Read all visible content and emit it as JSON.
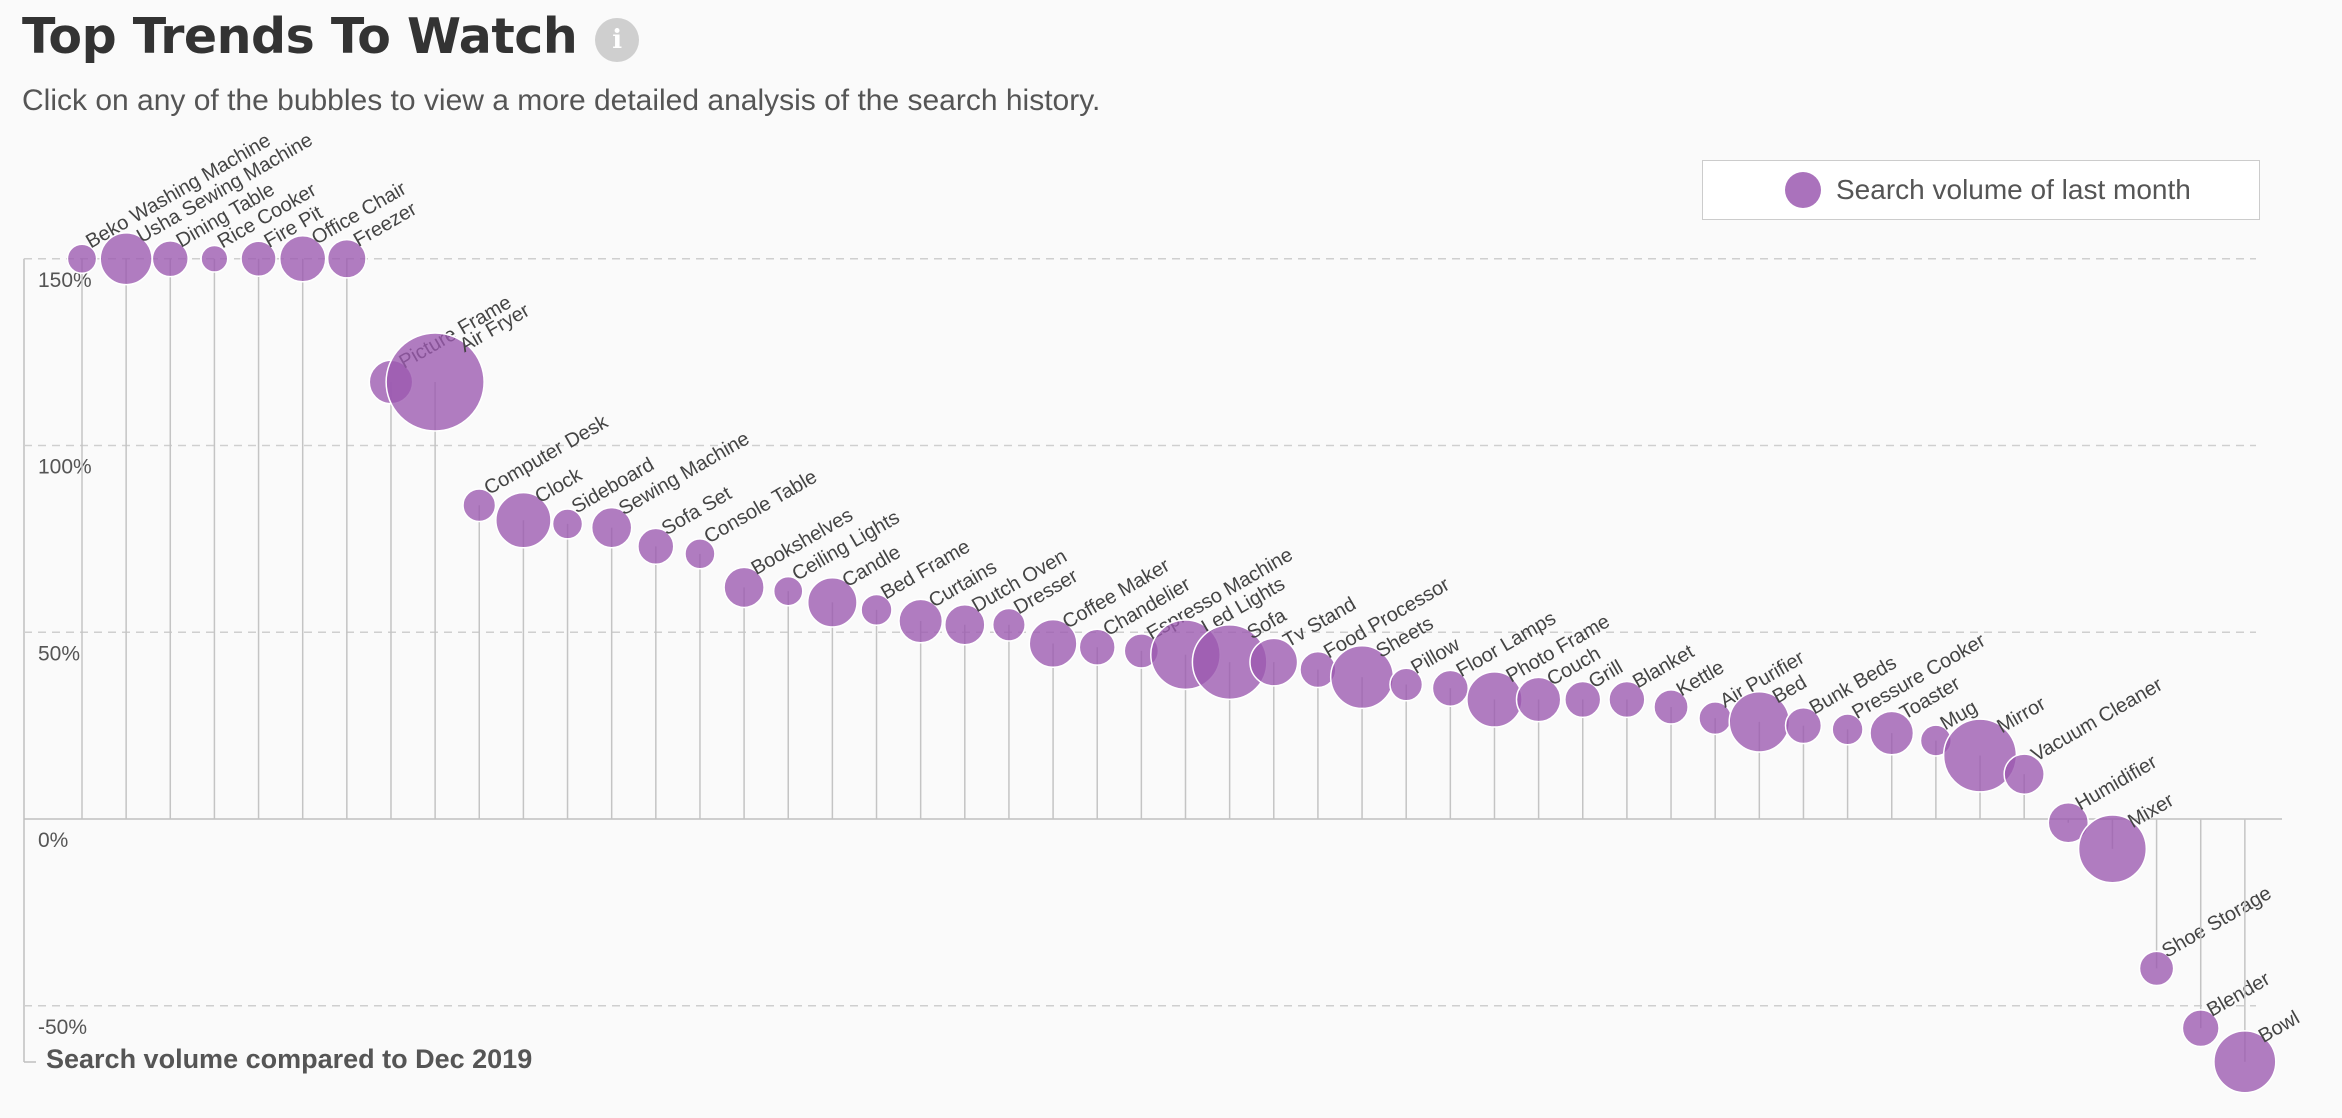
{
  "header": {
    "title": "Top Trends To Watch",
    "subtitle": "Click on any of the bubbles to view a more detailed analysis of the search history."
  },
  "legend": {
    "label": "Search volume of last month"
  },
  "colors": {
    "bubble": "#9b59b0",
    "grid": "#cfcfcf",
    "stem": "#c4c4c4",
    "axis": "#bfbfbf"
  },
  "chart_data": {
    "type": "scatter",
    "title": "Top Trends To Watch",
    "ylabel": "Search volume compared to Dec 2019",
    "ylim": [
      -65,
      150
    ],
    "yticks": [
      150,
      100,
      50,
      0,
      -50
    ],
    "ytick_labels": [
      "150%",
      "100%",
      "50%",
      "0%",
      "-50%"
    ],
    "grid": "horizontal dashed",
    "legend_position": "top-right",
    "series": [
      {
        "name": "Search volume of last month",
        "points": [
          {
            "label": "Beko Washing Machine",
            "value": 150,
            "size": 0.18
          },
          {
            "label": "Usha Sewing Machine",
            "value": 150,
            "size": 0.45
          },
          {
            "label": "Dining Table",
            "value": 150,
            "size": 0.26
          },
          {
            "label": "Rice Cooker",
            "value": 150,
            "size": 0.15
          },
          {
            "label": "Fire Pit",
            "value": 150,
            "size": 0.25
          },
          {
            "label": "Office Chair",
            "value": 150,
            "size": 0.38
          },
          {
            "label": "Freezer",
            "value": 150,
            "size": 0.29
          },
          {
            "label": "Picture Frame",
            "value": 117,
            "size": 0.35
          },
          {
            "label": "Air Fryer",
            "value": 117,
            "size": 1.0
          },
          {
            "label": "Computer Desk",
            "value": 84,
            "size": 0.22
          },
          {
            "label": "Clock",
            "value": 80,
            "size": 0.49
          },
          {
            "label": "Sideboard",
            "value": 79,
            "size": 0.19
          },
          {
            "label": "Sewing Machine",
            "value": 78,
            "size": 0.31
          },
          {
            "label": "Sofa Set",
            "value": 73,
            "size": 0.26
          },
          {
            "label": "Console Table",
            "value": 71,
            "size": 0.19
          },
          {
            "label": "Bookshelves",
            "value": 62,
            "size": 0.31
          },
          {
            "label": "Ceiling Lights",
            "value": 61,
            "size": 0.18
          },
          {
            "label": "Candle",
            "value": 58,
            "size": 0.42
          },
          {
            "label": "Bed Frame",
            "value": 56,
            "size": 0.2
          },
          {
            "label": "Curtains",
            "value": 53,
            "size": 0.35
          },
          {
            "label": "Dutch Oven",
            "value": 52,
            "size": 0.31
          },
          {
            "label": "Dresser",
            "value": 52,
            "size": 0.22
          },
          {
            "label": "Coffee Maker",
            "value": 47,
            "size": 0.4
          },
          {
            "label": "Chandelier",
            "value": 46,
            "size": 0.26
          },
          {
            "label": "Espresso Machine",
            "value": 45,
            "size": 0.24
          },
          {
            "label": "Led Lights",
            "value": 44,
            "size": 0.66
          },
          {
            "label": "Sofa",
            "value": 42,
            "size": 0.72
          },
          {
            "label": "Tv Stand",
            "value": 42,
            "size": 0.4
          },
          {
            "label": "Food Processor",
            "value": 40,
            "size": 0.26
          },
          {
            "label": "Sheets",
            "value": 38,
            "size": 0.58
          },
          {
            "label": "Pillow",
            "value": 36,
            "size": 0.22
          },
          {
            "label": "Floor Lamps",
            "value": 35,
            "size": 0.26
          },
          {
            "label": "Photo Frame",
            "value": 32,
            "size": 0.49
          },
          {
            "label": "Couch",
            "value": 32,
            "size": 0.36
          },
          {
            "label": "Grill",
            "value": 32,
            "size": 0.26
          },
          {
            "label": "Blanket",
            "value": 32,
            "size": 0.26
          },
          {
            "label": "Kettle",
            "value": 30,
            "size": 0.24
          },
          {
            "label": "Air Purifier",
            "value": 27,
            "size": 0.22
          },
          {
            "label": "Bed",
            "value": 26,
            "size": 0.55
          },
          {
            "label": "Bunk Beds",
            "value": 25,
            "size": 0.26
          },
          {
            "label": "Pressure Cooker",
            "value": 24,
            "size": 0.2
          },
          {
            "label": "Toaster",
            "value": 23,
            "size": 0.35
          },
          {
            "label": "Mug",
            "value": 21,
            "size": 0.2
          },
          {
            "label": "Mirror",
            "value": 17,
            "size": 0.7
          },
          {
            "label": "Vacuum Cleaner",
            "value": 12,
            "size": 0.31
          },
          {
            "label": "Humidifier",
            "value": -1,
            "size": 0.31
          },
          {
            "label": "Mixer",
            "value": -8,
            "size": 0.64
          },
          {
            "label": "Shoe Storage",
            "value": -40,
            "size": 0.24
          },
          {
            "label": "Blender",
            "value": -56,
            "size": 0.27
          },
          {
            "label": "Bowl",
            "value": -65,
            "size": 0.57
          }
        ]
      }
    ]
  }
}
